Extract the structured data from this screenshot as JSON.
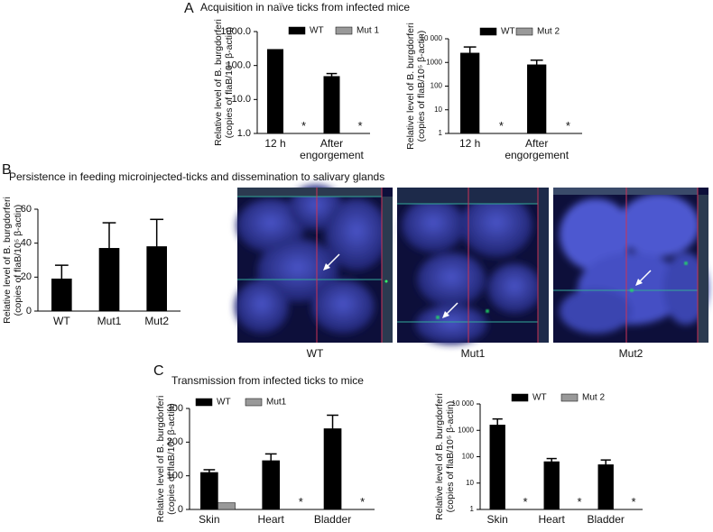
{
  "panel_labels": [
    "A",
    "B",
    "C"
  ],
  "panel_titles": [
    "Acquisition in naïve ticks from infected mice",
    "Persistence in feeding microinjected-ticks and dissemination to salivary glands",
    "Transmission from infected ticks to mice"
  ],
  "image_captions": [
    "WT",
    "Mut1",
    "Mut2"
  ],
  "chart_data": [
    {
      "type": "bar",
      "log_scale": true,
      "ylabel": [
        "Relative level of B. burgdorferi",
        "(copies of flaB/10⁵ β-actin)"
      ],
      "categories": [
        "12 h",
        "After engorgement"
      ],
      "series": [
        {
          "name": "WT",
          "color": "#000000",
          "values": [
            300,
            48
          ],
          "errors": [
            null,
            10
          ]
        },
        {
          "name": "Mut 1",
          "color": "#999999",
          "values": [
            null,
            null
          ],
          "value_labels": [
            "*",
            "*"
          ]
        }
      ],
      "ylim": [
        1,
        1000
      ],
      "yticks": [
        {
          "value": 1,
          "label": "1.0"
        },
        {
          "value": 10,
          "label": "10.0"
        },
        {
          "value": 100,
          "label": "100.0"
        },
        {
          "value": 1000,
          "label": "1000.0"
        }
      ]
    },
    {
      "type": "bar",
      "log_scale": true,
      "ylabel": [
        "Relative level of B. burgdorferi",
        "(copies of flaB/10⁵ β-actin)"
      ],
      "categories": [
        "12 h",
        "After engorgement"
      ],
      "series": [
        {
          "name": "WT",
          "color": "#000000",
          "values": [
            2500,
            800
          ],
          "errors": [
            2000,
            450
          ]
        },
        {
          "name": "Mut 2",
          "color": "#999999",
          "values": [
            null,
            null
          ],
          "value_labels": [
            "*",
            "*"
          ]
        }
      ],
      "ylim": [
        1,
        10000
      ],
      "yticks": [
        1,
        10,
        100,
        1000,
        {
          "value": 10000,
          "label": "10 000"
        }
      ]
    },
    {
      "type": "bar",
      "log_scale": false,
      "ylabel": [
        "Relative level of B. burgdorferi",
        "(copies of flaB/10⁵ β-actin)"
      ],
      "categories": [
        "WT",
        "Mut1",
        "Mut2"
      ],
      "values": [
        19,
        37,
        38
      ],
      "errors": [
        8,
        15,
        16
      ],
      "color": "#000000",
      "ylim": [
        0,
        60
      ],
      "yticks": [
        0,
        20,
        40,
        60
      ]
    },
    {
      "type": "bar",
      "log_scale": false,
      "ylabel": [
        "Relative level of B. burgdorferi",
        "(copies of flaB/10⁵ β-actin)"
      ],
      "categories": [
        "Skin",
        "Heart",
        "Bladder"
      ],
      "series": [
        {
          "name": "WT",
          "color": "#000000",
          "values": [
            110,
            145,
            240
          ],
          "errors": [
            8,
            20,
            40
          ]
        },
        {
          "name": "Mut1",
          "color": "#999999",
          "values": [
            20,
            null,
            null
          ],
          "value_labels": [
            null,
            "*",
            "*"
          ]
        }
      ],
      "ylim": [
        0,
        300
      ],
      "yticks": [
        0,
        100,
        200,
        300
      ]
    },
    {
      "type": "bar",
      "log_scale": true,
      "ylabel": [
        "Relative level of B. burgdorferi",
        "(copies of flaB/10⁵ β-actin)"
      ],
      "categories": [
        "Skin",
        "Heart",
        "Bladder"
      ],
      "series": [
        {
          "name": "WT",
          "color": "#000000",
          "values": [
            1600,
            65,
            50
          ],
          "errors": [
            1100,
            20,
            25
          ]
        },
        {
          "name": "Mut 2",
          "color": "#999999",
          "values": [
            null,
            null,
            null
          ],
          "value_labels": [
            "*",
            "*",
            "*"
          ]
        }
      ],
      "ylim": [
        1,
        10000
      ],
      "yticks": [
        1,
        10,
        100,
        1000,
        {
          "value": 10000,
          "label": "10 000"
        }
      ]
    }
  ]
}
